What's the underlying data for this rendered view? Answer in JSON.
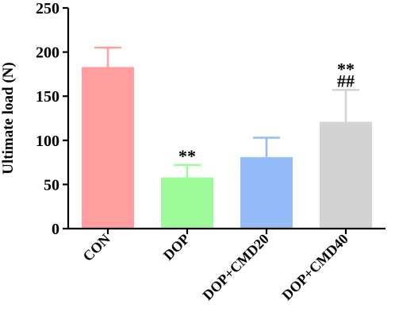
{
  "chart_data": {
    "type": "bar",
    "categories": [
      "CON",
      "DOP",
      "DOP+CMD20",
      "DOP+CMD40"
    ],
    "values": [
      183,
      58,
      81,
      121
    ],
    "errors_upper": [
      22,
      14,
      22,
      36
    ],
    "colors": [
      "#ff9d9f",
      "#9dfb99",
      "#93bcf8",
      "#d3d3d3"
    ],
    "annotations": [
      {
        "category": "DOP",
        "lines": [
          "**"
        ]
      },
      {
        "category": "DOP+CMD40",
        "lines": [
          "**",
          "##"
        ]
      }
    ],
    "ylabel": "Ultimate load (N)",
    "xlabel": "",
    "ylim": [
      0,
      250
    ],
    "yticks": [
      0,
      50,
      100,
      150,
      200,
      250
    ],
    "grid": false
  }
}
